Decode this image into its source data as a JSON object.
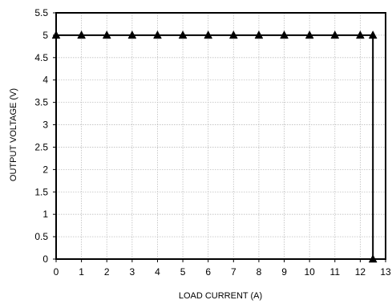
{
  "chart_data": {
    "type": "line",
    "title": "",
    "xlabel": "LOAD CURRENT (A)",
    "ylabel": "OUTPUT VOLTAGE (V)",
    "xlim": [
      0,
      13
    ],
    "ylim": [
      0,
      5.5
    ],
    "x_ticks": [
      "0",
      "1",
      "2",
      "3",
      "4",
      "5",
      "6",
      "7",
      "8",
      "9",
      "10",
      "11",
      "12",
      "13"
    ],
    "y_ticks": [
      "0",
      "0.5",
      "1",
      "1.5",
      "2",
      "2.5",
      "3",
      "3.5",
      "4",
      "4.5",
      "5",
      "5.5"
    ],
    "grid": true,
    "legend": "none",
    "series": [
      {
        "marker": "triangle",
        "color": "#000000",
        "x": [
          0,
          1,
          2,
          3,
          4,
          5,
          6,
          7,
          8,
          9,
          10,
          11,
          12,
          12.5,
          12.5
        ],
        "y": [
          5,
          5,
          5,
          5,
          5,
          5,
          5,
          5,
          5,
          5,
          5,
          5,
          5,
          5,
          0
        ]
      }
    ]
  }
}
